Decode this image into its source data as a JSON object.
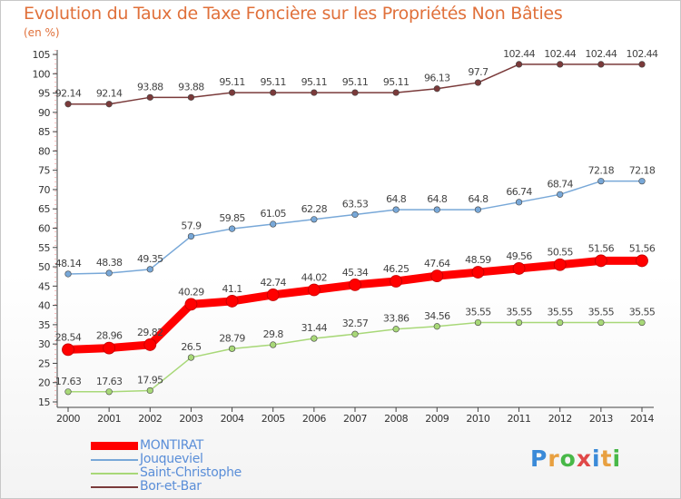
{
  "header": {
    "title": "Evolution du Taux de Taxe Foncière sur les Propriétés Non Bâties",
    "unit": "(en %)"
  },
  "chart_data": {
    "type": "line",
    "title": "Evolution du Taux de Taxe Foncière sur les Propriétés Non Bâties",
    "ylabel": "(en %)",
    "xlabel": "",
    "ylim": [
      15,
      105
    ],
    "yticks": [
      15,
      20,
      25,
      30,
      35,
      40,
      45,
      50,
      55,
      60,
      65,
      70,
      75,
      80,
      85,
      90,
      95,
      100,
      105
    ],
    "grid": false,
    "categories": [
      "2000",
      "2001",
      "2002",
      "2003",
      "2004",
      "2005",
      "2006",
      "2007",
      "2008",
      "2009",
      "2010",
      "2011",
      "2012",
      "2013",
      "2014"
    ],
    "series": [
      {
        "name": "MONTIRAT",
        "color": "#ff0000",
        "emphasis": true,
        "values": [
          28.54,
          28.96,
          29.82,
          40.29,
          41.1,
          42.74,
          44.02,
          45.34,
          46.25,
          47.64,
          48.59,
          49.56,
          50.55,
          51.56,
          51.56
        ],
        "labels": [
          "28.54",
          "28.96",
          "29.82",
          "40.29",
          "41.1",
          "42.74",
          "44.02",
          "45.34",
          "46.25",
          "47.64",
          "48.59",
          "49.56",
          "50.55",
          "51.56",
          "51.56"
        ]
      },
      {
        "name": "Jouqueviel",
        "color": "#78a8d8",
        "values": [
          48.14,
          48.38,
          49.35,
          57.9,
          59.85,
          61.05,
          62.28,
          63.53,
          64.8,
          64.8,
          64.8,
          66.74,
          68.74,
          72.18,
          72.18
        ],
        "labels": [
          "48.14",
          "48.38",
          "49.35",
          "57.9",
          "59.85",
          "61.05",
          "62.28",
          "63.53",
          "64.8",
          "64.8",
          "64.8",
          "66.74",
          "68.74",
          "72.18",
          "72.18"
        ]
      },
      {
        "name": "Saint-Christophe",
        "color": "#a8d878",
        "values": [
          17.63,
          17.63,
          17.95,
          26.5,
          28.79,
          29.8,
          31.44,
          32.57,
          33.86,
          34.56,
          35.55,
          35.55,
          35.55,
          35.55,
          35.55
        ],
        "labels": [
          "17.63",
          "17.63",
          "17.95",
          "26.5",
          "28.79",
          "29.8",
          "31.44",
          "32.57",
          "33.86",
          "34.56",
          "35.55",
          "35.55",
          "35.55",
          "35.55",
          "35.55"
        ]
      },
      {
        "name": "Bor-et-Bar",
        "color": "#7a3a3a",
        "values": [
          92.14,
          92.14,
          93.88,
          93.88,
          95.11,
          95.11,
          95.11,
          95.11,
          95.11,
          96.13,
          97.7,
          102.44,
          102.44,
          102.44,
          102.44
        ],
        "labels": [
          "92.14",
          "92.14",
          "93.88",
          "93.88",
          "95.11",
          "95.11",
          "95.11",
          "95.11",
          "95.11",
          "96.13",
          "97.7",
          "102.44",
          "102.44",
          "102.44",
          "102.44"
        ]
      }
    ]
  },
  "legend": [
    {
      "label": "MONTIRAT",
      "color": "#ff0000"
    },
    {
      "label": "Jouqueviel",
      "color": "#78a8d8"
    },
    {
      "label": "Saint-Christophe",
      "color": "#a8d878"
    },
    {
      "label": "Bor-et-Bar",
      "color": "#7a3a3a"
    }
  ],
  "logo": {
    "letters": [
      "P",
      "r",
      "o",
      "x",
      "i",
      "t",
      "i"
    ],
    "colors": [
      "#3a8ad8",
      "#e8a040",
      "#48b848",
      "#e04848",
      "#3a8ad8",
      "#e8a040",
      "#48b848"
    ]
  }
}
